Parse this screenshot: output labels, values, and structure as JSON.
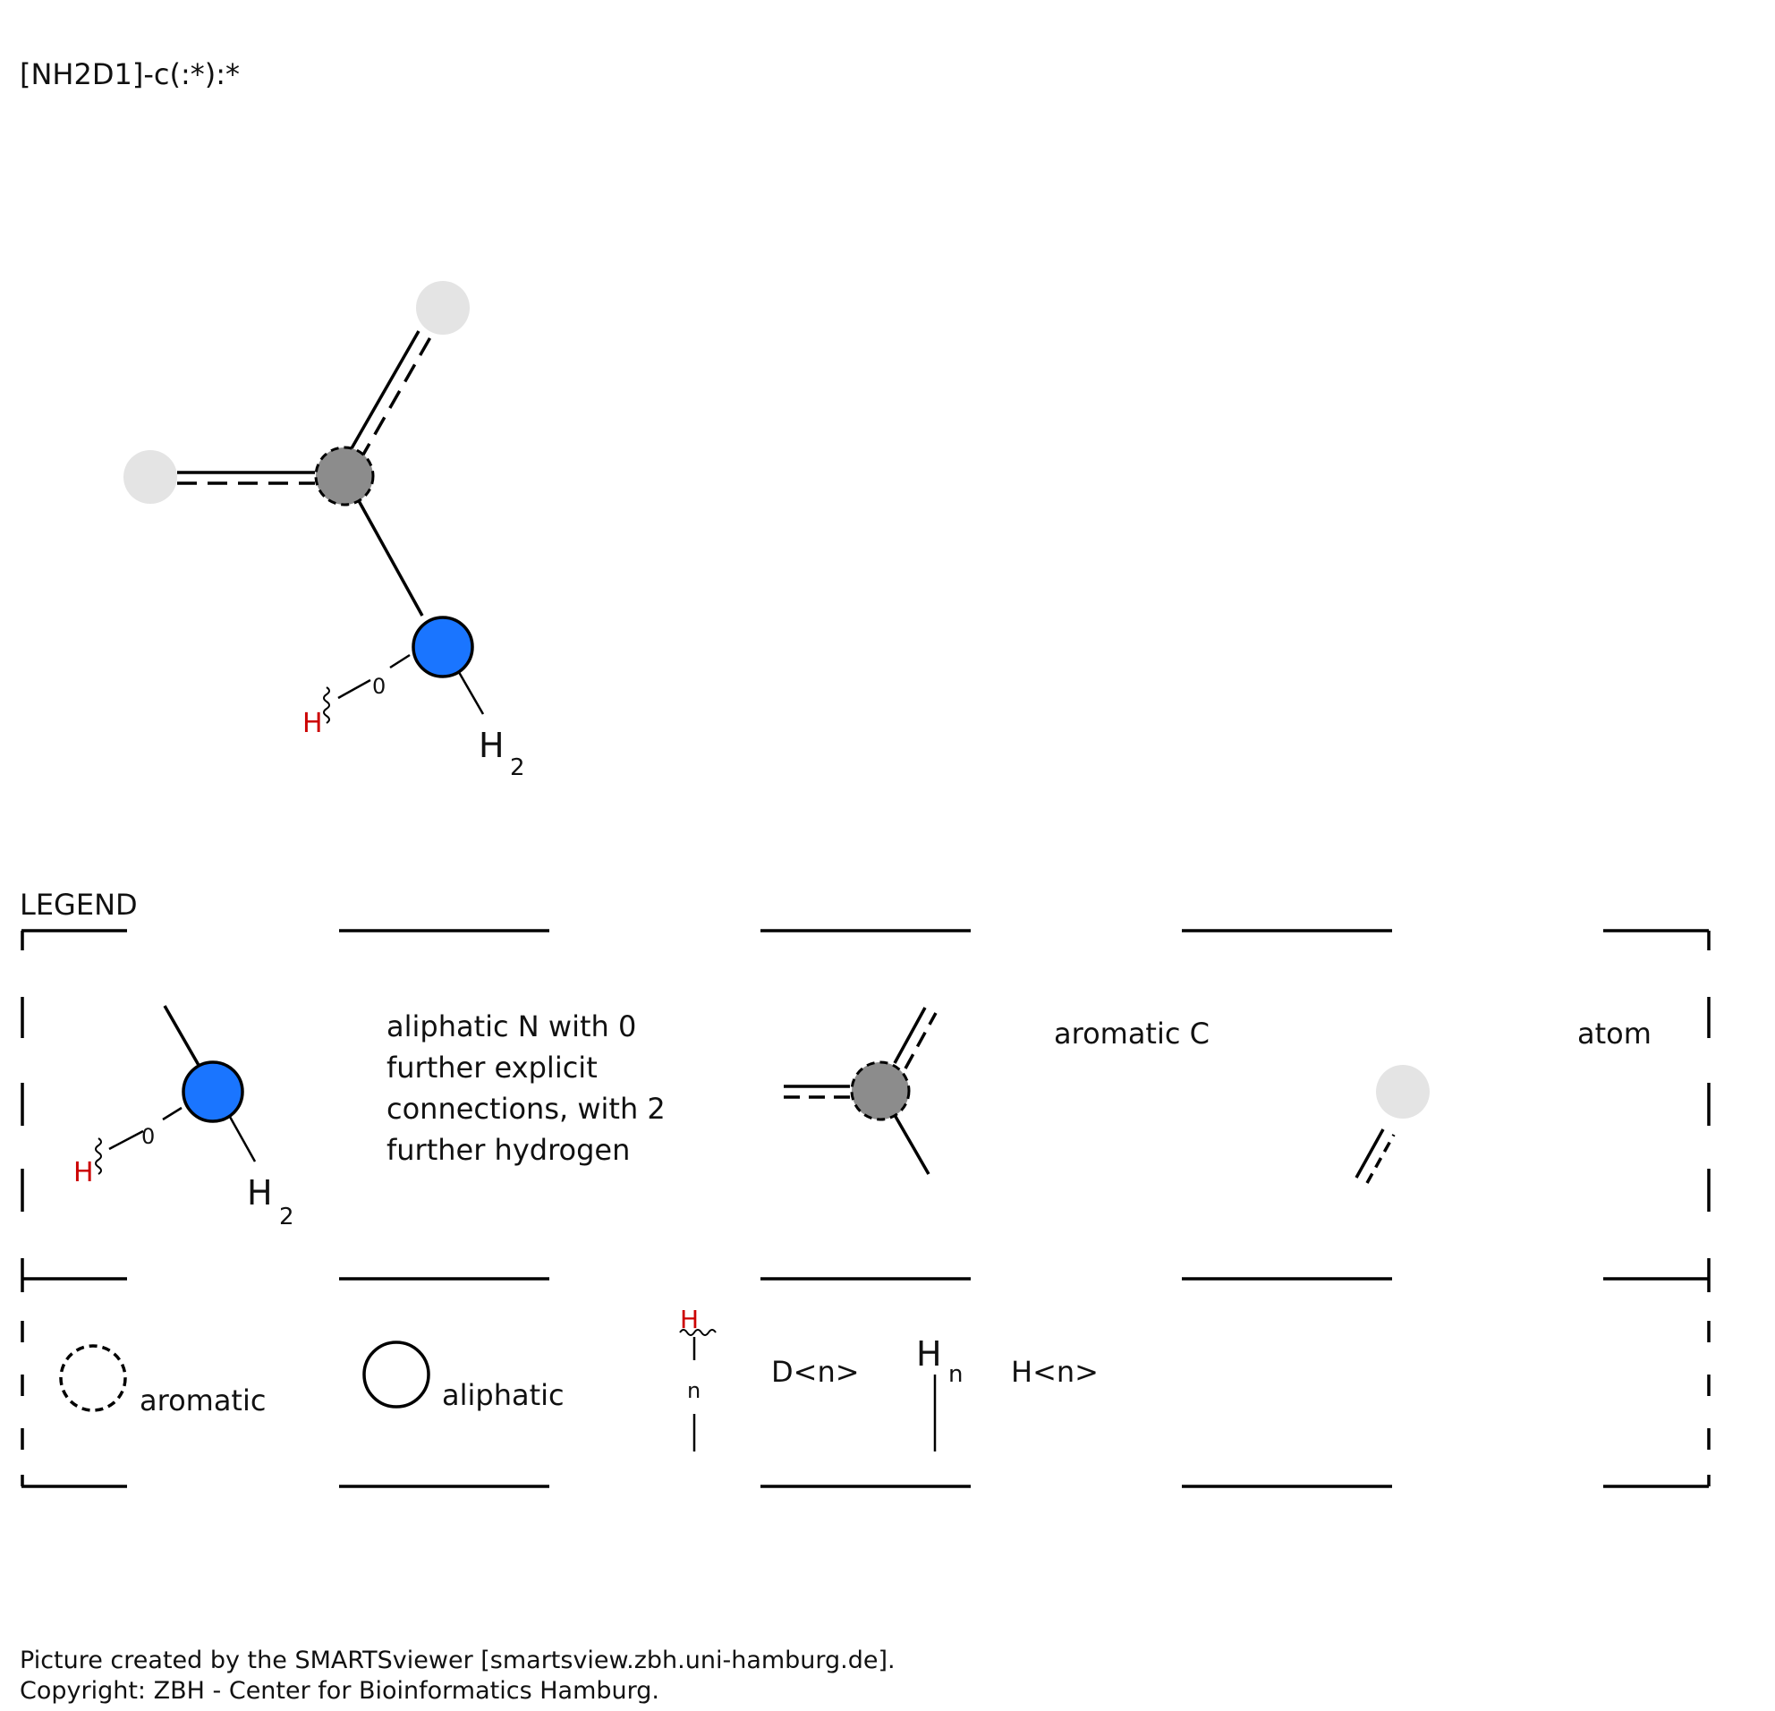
{
  "smarts": "[NH2D1]-c(:*):*",
  "molecule": {
    "atom_labels": {
      "h_count": "H",
      "h_subscript": "2",
      "d_h": "H",
      "d_count": "0"
    }
  },
  "legend": {
    "title": "LEGEND",
    "row1": {
      "n_desc_lines": [
        "aliphatic N with 0",
        "further explicit",
        "connections, with 2",
        "further hydrogen"
      ],
      "n_h": "H",
      "n_h_sub": "2",
      "n_d_h": "H",
      "n_d_count": "0",
      "c_desc": "aromatic C",
      "atom_desc": "atom"
    },
    "row2": {
      "aromatic": "aromatic",
      "aliphatic": "aliphatic",
      "d_symbol_h": "H",
      "d_symbol_n": "n",
      "d_desc": "D<n>",
      "h_symbol_h": "H",
      "h_symbol_n": "n",
      "h_desc": "H<n>"
    }
  },
  "footer": {
    "line1": "Picture created by the SMARTSviewer [smartsview.zbh.uni-hamburg.de].",
    "line2": "Copyright: ZBH - Center for Bioinformatics Hamburg."
  },
  "colors": {
    "nitrogen": "#1a75ff",
    "aromatic_carbon": "#8c8c8c",
    "any_atom": "#e4e4e4",
    "hydrogen_label": "#cc0000"
  }
}
